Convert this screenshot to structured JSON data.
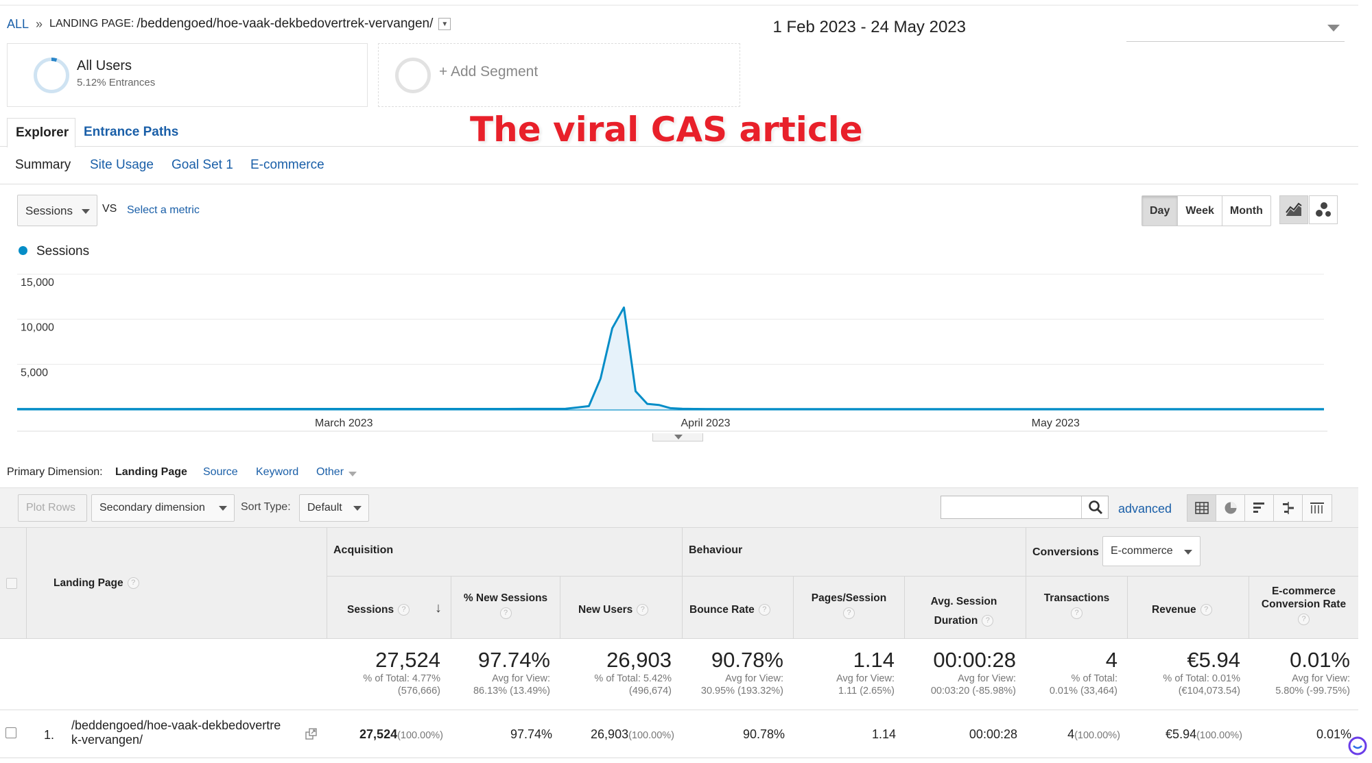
{
  "breadcrumb": {
    "all": "ALL",
    "separator": "»",
    "landing_label": "LANDING PAGE:",
    "landing_path": "/beddengoed/hoe-vaak-dekbedovertrek-vervangen/"
  },
  "date_range": "1 Feb 2023 - 24 May 2023",
  "segments": {
    "all_users": {
      "title": "All Users",
      "subtitle": "5.12% Entrances"
    },
    "add_segment": "+ Add Segment"
  },
  "overlay_title": "The viral CAS article",
  "tabs": {
    "explorer": "Explorer",
    "entrance_paths": "Entrance Paths"
  },
  "subtabs": [
    "Summary",
    "Site Usage",
    "Goal Set 1",
    "E-commerce"
  ],
  "metric_selector": {
    "metric": "Sessions",
    "vs": "VS",
    "select_metric": "Select a metric"
  },
  "granularity": [
    "Day",
    "Week",
    "Month"
  ],
  "chart_icons": [
    "line-chart-icon",
    "motion-chart-icon"
  ],
  "chart_data": {
    "type": "area",
    "legend": "Sessions",
    "series_color": "#058dc7",
    "y_ticks": [
      "15,000",
      "10,000",
      "5,000"
    ],
    "ylim": [
      0,
      15000
    ],
    "x_tick_labels": [
      "March 2023",
      "April 2023",
      "May 2023"
    ],
    "x_tick_dates": [
      "2023-03-01",
      "2023-04-01",
      "2023-05-01"
    ],
    "x_range": [
      "2023-02-01",
      "2023-05-24"
    ],
    "series": [
      {
        "name": "Sessions",
        "x": [
          "2023-02-01",
          "2023-03-15",
          "2023-03-20",
          "2023-03-21",
          "2023-03-22",
          "2023-03-23",
          "2023-03-24",
          "2023-03-25",
          "2023-03-26",
          "2023-03-27",
          "2023-03-28",
          "2023-03-29",
          "2023-03-30",
          "2023-03-31",
          "2023-04-01",
          "2023-04-05",
          "2023-05-24"
        ],
        "values": [
          30,
          40,
          60,
          200,
          350,
          3400,
          9000,
          11300,
          2000,
          600,
          480,
          120,
          60,
          40,
          30,
          20,
          20
        ]
      }
    ]
  },
  "primary_dimension": {
    "label": "Primary Dimension:",
    "current": "Landing Page",
    "options": [
      "Source",
      "Keyword",
      "Other"
    ]
  },
  "toolbar": {
    "plot_rows": "Plot Rows",
    "secondary_dimension": "Secondary dimension",
    "sort_type_label": "Sort Type:",
    "sort_type_value": "Default",
    "search_value": "",
    "advanced": "advanced"
  },
  "view_icons": [
    "table-view-icon",
    "pie-view-icon",
    "performance-view-icon",
    "comparison-view-icon",
    "pivot-view-icon"
  ],
  "table": {
    "groups": {
      "acquisition": "Acquisition",
      "behaviour": "Behaviour",
      "conversions": "Conversions",
      "conversions_select": "E-commerce"
    },
    "columns": {
      "landing_page": "Landing Page",
      "sessions": "Sessions",
      "new_sessions": "% New Sessions",
      "new_users": "New Users",
      "bounce_rate": "Bounce Rate",
      "pages_session": "Pages/Session",
      "avg_duration": "Avg. Session Duration",
      "transactions": "Transactions",
      "revenue": "Revenue",
      "ecom_rate": "E-commerce Conversion Rate"
    },
    "totals": {
      "sessions": {
        "value": "27,524",
        "sub1": "% of Total: 4.77%",
        "sub2": "(576,666)"
      },
      "new_sessions": {
        "value": "97.74%",
        "sub1": "Avg for View:",
        "sub2": "86.13% (13.49%)"
      },
      "new_users": {
        "value": "26,903",
        "sub1": "% of Total: 5.42%",
        "sub2": "(496,674)"
      },
      "bounce_rate": {
        "value": "90.78%",
        "sub1": "Avg for View:",
        "sub2": "30.95% (193.32%)"
      },
      "pages_session": {
        "value": "1.14",
        "sub1": "Avg for View:",
        "sub2": "1.11 (2.65%)"
      },
      "avg_duration": {
        "value": "00:00:28",
        "sub1": "Avg for View:",
        "sub2": "00:03:20 (-85.98%)"
      },
      "transactions": {
        "value": "4",
        "sub1": "% of Total:",
        "sub2": "0.01% (33,464)"
      },
      "revenue": {
        "value": "€5.94",
        "sub1": "% of Total: 0.01%",
        "sub2": "(€104,073.54)"
      },
      "ecom_rate": {
        "value": "0.01%",
        "sub1": "Avg for View:",
        "sub2": "5.80% (-99.75%)"
      }
    },
    "rows": [
      {
        "index": "1.",
        "landing_page_line1": "/beddengoed/hoe-vaak-dekbedovertre",
        "landing_page_line2": "k-vervangen/",
        "sessions": "27,524",
        "sessions_pct": "(100.00%)",
        "new_sessions": "97.74%",
        "new_users": "26,903",
        "new_users_pct": "(100.00%)",
        "bounce_rate": "90.78%",
        "pages_session": "1.14",
        "avg_duration": "00:00:28",
        "transactions": "4",
        "transactions_pct": "(100.00%)",
        "revenue": "€5.94",
        "revenue_pct": "(100.00%)",
        "ecom_rate": "0.01%"
      }
    ]
  }
}
